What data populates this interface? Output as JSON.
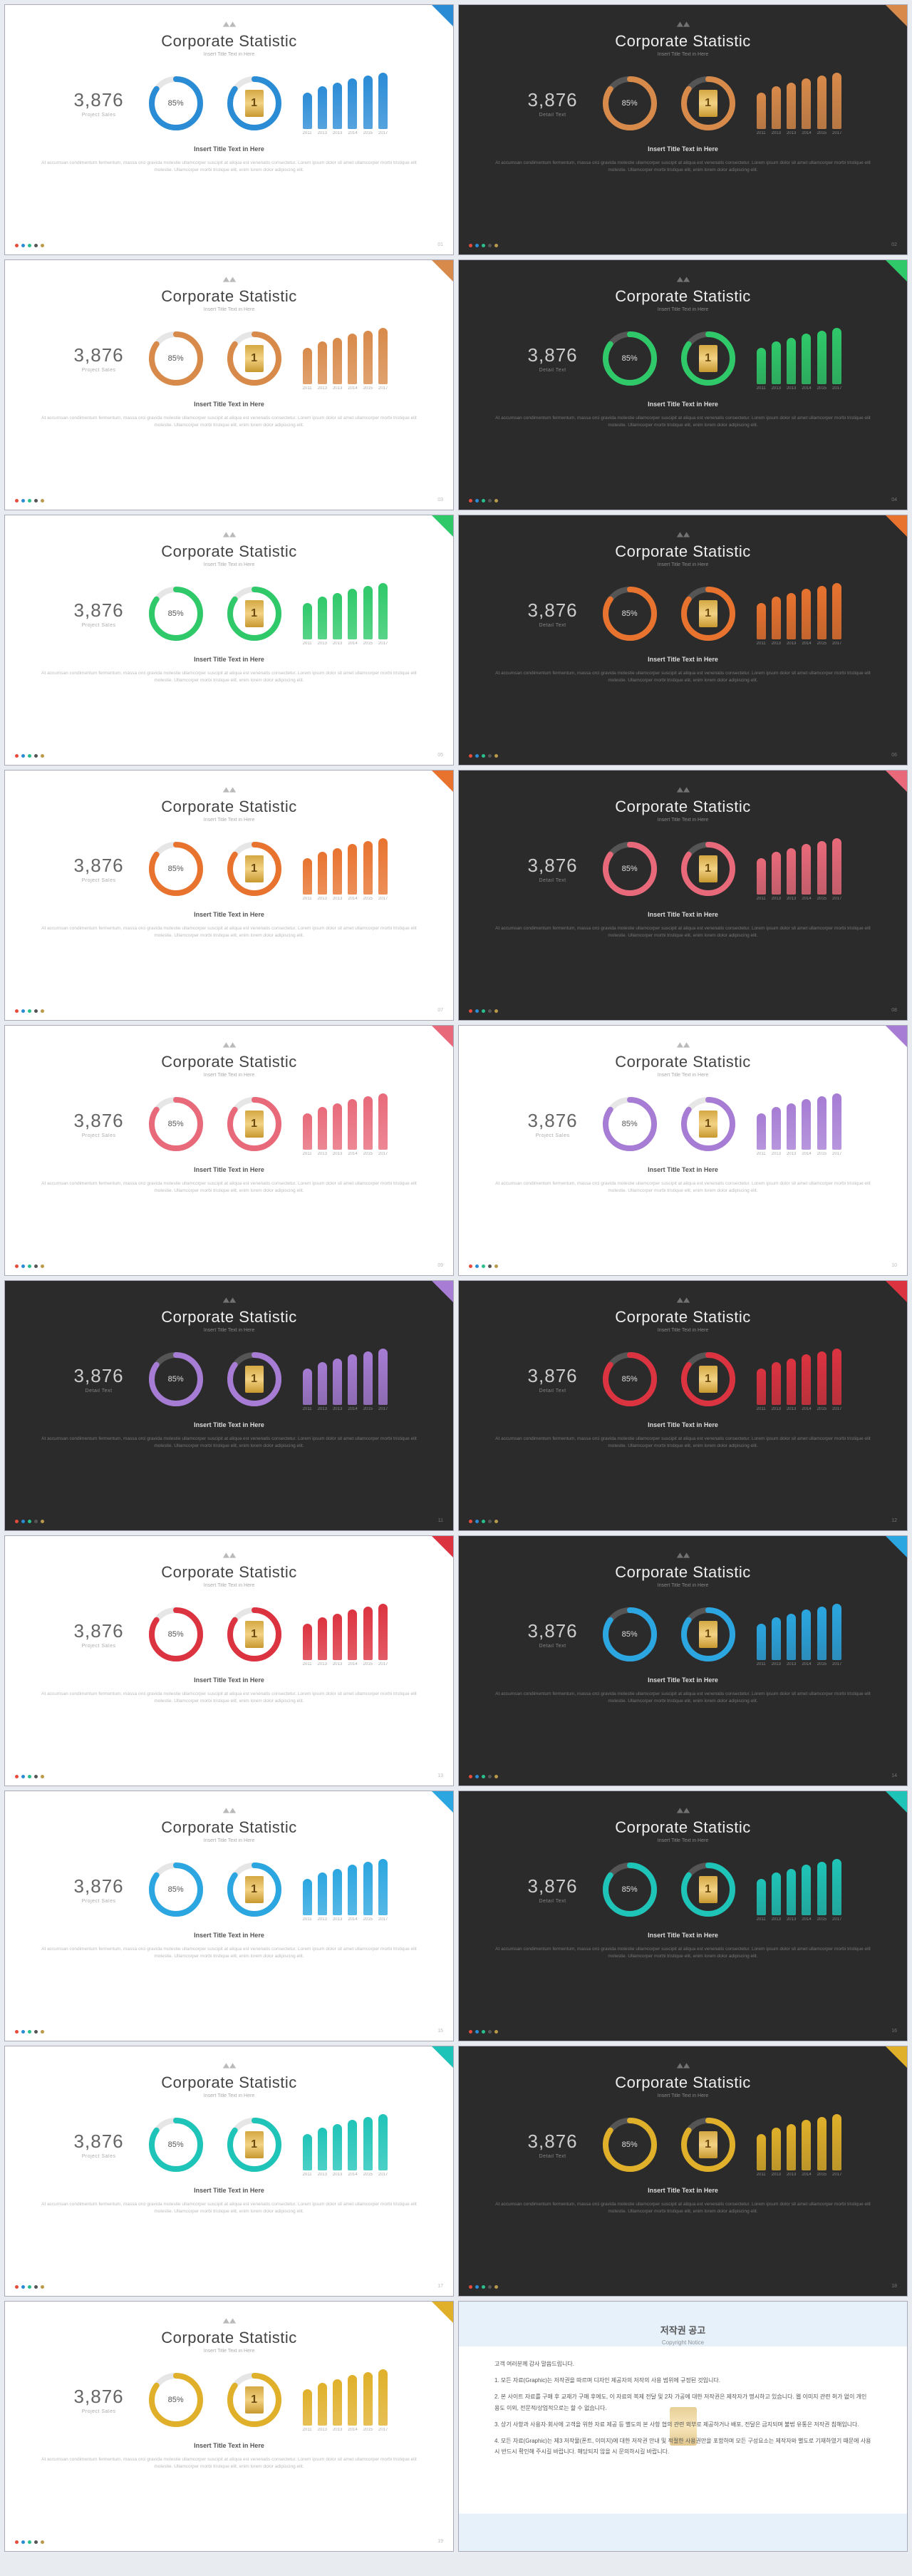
{
  "title": "Corporate Statistic",
  "subtitle": "Insert Title Text in Here",
  "stat_number": "3,876",
  "stat_label_light": "Project Sales",
  "stat_label_dark": "Detail Text",
  "donut1_pct": 85,
  "donut2_pct": 85,
  "donut_label": "85%",
  "bars": {
    "years": [
      "2011",
      "2013",
      "2013",
      "2014",
      "2015",
      "2017"
    ],
    "values": [
      55,
      64,
      70,
      76,
      80,
      85
    ],
    "max": 90
  },
  "caption": "Insert Title Text in Here",
  "lorem": "At accumsan condimentum fermentum, massa orci gravida molestie ullamcorper suscipit at aliqua est venenatis consectetur. Lorem ipsum dolor sit amet ullamcorper morbi tristique elit molestie. Ullamcorper morbi tristique elit, enim lorem dolor adipiscing elit.",
  "palette_dots": [
    "#e74c3c",
    "#2b8cd6",
    "#29c08b",
    "#555555",
    "#b89a4a"
  ],
  "slides": [
    {
      "bg": "light",
      "accent": "#2b8cd6",
      "corner": "#2b8cd6"
    },
    {
      "bg": "dark",
      "accent": "#d88a4a",
      "corner": "#d88a4a"
    },
    {
      "bg": "light",
      "accent": "#d88a4a",
      "corner": "#d88a4a"
    },
    {
      "bg": "dark",
      "accent": "#2fc96a",
      "corner": "#2fc96a"
    },
    {
      "bg": "light",
      "accent": "#2fc96a",
      "corner": "#2fc96a"
    },
    {
      "bg": "dark",
      "accent": "#e8732f",
      "corner": "#e8732f"
    },
    {
      "bg": "light",
      "accent": "#e8732f",
      "corner": "#e8732f"
    },
    {
      "bg": "dark",
      "accent": "#e86a7a",
      "corner": "#e86a7a"
    },
    {
      "bg": "light",
      "accent": "#e86a7a",
      "corner": "#e86a7a"
    },
    {
      "bg": "light",
      "accent": "#a67cd4",
      "corner": "#a67cd4"
    },
    {
      "bg": "dark",
      "accent": "#a67cd4",
      "corner": "#a67cd4"
    },
    {
      "bg": "dark",
      "accent": "#dc3340",
      "corner": "#dc3340"
    },
    {
      "bg": "light",
      "accent": "#dc3340",
      "corner": "#dc3340"
    },
    {
      "bg": "dark",
      "accent": "#2ba6e0",
      "corner": "#2ba6e0"
    },
    {
      "bg": "light",
      "accent": "#2ba6e0",
      "corner": "#2ba6e0"
    },
    {
      "bg": "dark",
      "accent": "#1fc4b8",
      "corner": "#1fc4b8"
    },
    {
      "bg": "light",
      "accent": "#1fc4b8",
      "corner": "#1fc4b8"
    },
    {
      "bg": "dark",
      "accent": "#e0b02a",
      "corner": "#e0b02a"
    },
    {
      "bg": "light",
      "accent": "#e0b02a",
      "corner": "#e0b02a"
    }
  ],
  "donut_track_light": "#e6e6e6",
  "donut_track_dark": "#555555",
  "donut_stroke": 8,
  "copyright": {
    "title": "저작권 공고",
    "en": "Copyright Notice",
    "lines": [
      "고객 여러분께 감사 말씀드립니다.",
      "1. 모든 자료(Graphic)는 저작권을 따르며 디자인 제공자의 저작의 사용 범위에 규정된 것입니다.",
      "2. 본 사이트 자료를 구매 후 교재가 구매 후에도, 이 자료의 복제 전달 및 2차 가공에 대한 저작권은 제작자가 명시하고 있습니다. 웹 이미지 관련 허가 없이 개인 용도 이외, 전문적/상업적으로는 할 수 없습니다.",
      "3. 상기 사항과 사용자·회사에 고객을 위한 자료 제공 등 별도의 본 사항 협의 관련 외부로 제공하거나 배포, 전달은 금지되며 불법 유통은 저작권 침해입니다.",
      "4. 모든 자료(Graphic)는 제3 저작물(폰트, 이미지)에 대한 저작권 안내 및 적절한 사용권만을 포함하며 모든 구성요소는 제작자와 별도로 기재하였기 때문에 사용시 반드시 확인해 주시길 바랍니다. 해당되지 않을 시 문의하시길 바랍니다."
    ]
  }
}
